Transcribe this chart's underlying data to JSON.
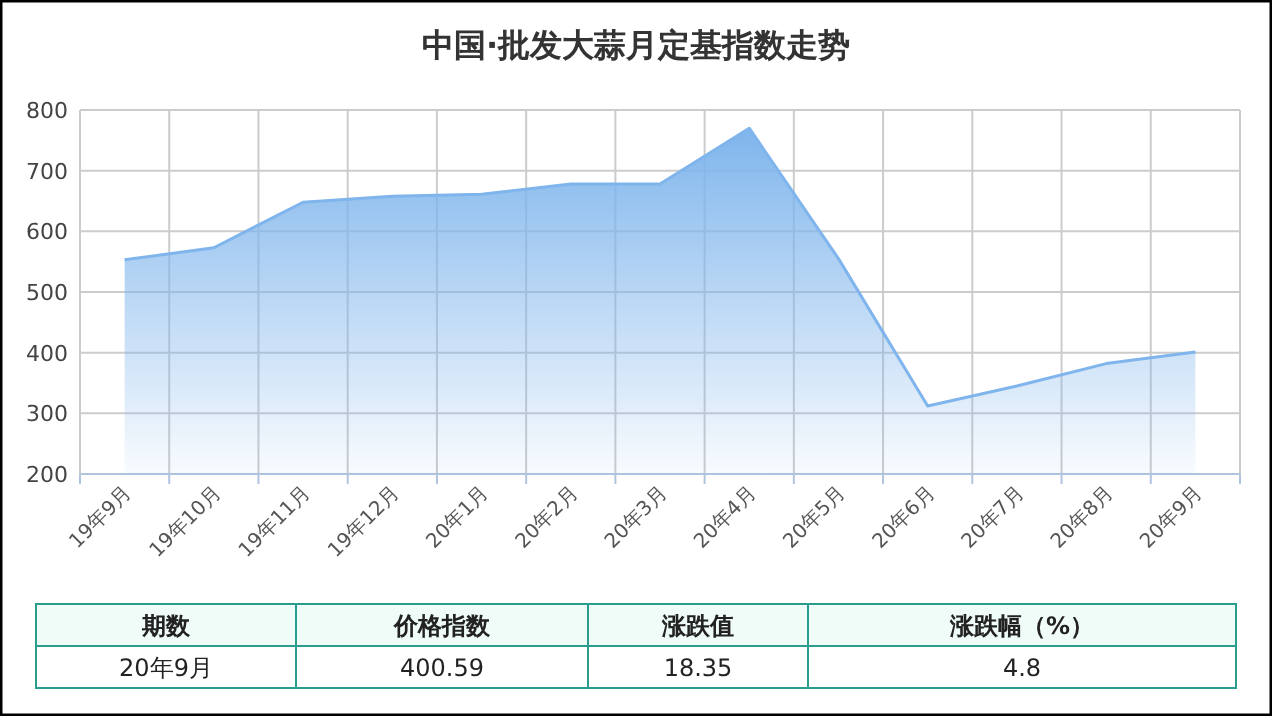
{
  "chart_data": [
    {
      "type": "area",
      "title": "中国·批发大蒜月定基指数走势",
      "categories": [
        "19年9月",
        "19年10月",
        "19年11月",
        "19年12月",
        "20年1月",
        "20年2月",
        "20年3月",
        "20年4月",
        "20年5月",
        "20年6月",
        "20年7月",
        "20年8月",
        "20年9月"
      ],
      "values": [
        553,
        573,
        648,
        658,
        661,
        678,
        678,
        770,
        555,
        312,
        345,
        382,
        401
      ],
      "color": "#7fb5ec",
      "ylim": [
        200,
        800
      ],
      "yticks": [
        200,
        300,
        400,
        500,
        600,
        700,
        800
      ],
      "grid": true
    },
    {
      "type": "other",
      "annotations": [
        "期数",
        "价格指数",
        "涨跌值",
        "涨跌幅（%）",
        "20年9月",
        "400.59",
        "18.35",
        "4.8"
      ]
    }
  ]
}
